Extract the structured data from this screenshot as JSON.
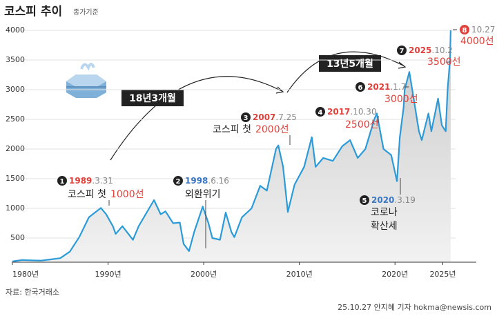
{
  "chart_data": {
    "type": "line",
    "title": "코스피 추이",
    "subtitle": "종가기준",
    "source": "자료: 한국거래소",
    "credit": "25.10.27 안지혜 기자 hokma@newsis.com",
    "x": [
      1980,
      1981,
      1982,
      1983,
      1984,
      1985,
      1986,
      1987,
      1988,
      1989.25,
      1989.8,
      1990.5,
      1990.8,
      1991.5,
      1992.6,
      1993.2,
      1994.8,
      1995.5,
      1996,
      1996.8,
      1997.5,
      1997.9,
      1998.46,
      1999,
      1999.9,
      2000.5,
      2000.9,
      2001.7,
      2002.3,
      2002.9,
      2003.2,
      2004,
      2005,
      2005.9,
      2006.6,
      2007.56,
      2007.8,
      2008.3,
      2008.8,
      2009.5,
      2010.5,
      2011.3,
      2011.7,
      2012.5,
      2013.5,
      2014.5,
      2015.3,
      2016.1,
      2016.9,
      2017.83,
      2018.1,
      2018.8,
      2019.6,
      2020.21,
      2020.5,
      2020.9,
      2021.01,
      2021.5,
      2021.9,
      2022.5,
      2022.8,
      2023.5,
      2023.8,
      2024.5,
      2024.9,
      2025.3,
      2025.5,
      2025.75,
      2025.82
    ],
    "series": [
      {
        "name": "코스피",
        "color": "#2a9bd8",
        "values": [
          106,
          130,
          125,
          120,
          140,
          160,
          270,
          520,
          850,
          1007,
          900,
          700,
          570,
          700,
          470,
          700,
          1140,
          900,
          950,
          750,
          760,
          400,
          280,
          600,
          1030,
          750,
          500,
          470,
          930,
          600,
          515,
          850,
          1000,
          1380,
          1300,
          2004,
          2060,
          1700,
          940,
          1400,
          1700,
          2200,
          1700,
          1850,
          1800,
          2050,
          2150,
          1850,
          2000,
          2500,
          2600,
          2000,
          1900,
          1457,
          2200,
          2700,
          3000,
          3300,
          2900,
          2300,
          2150,
          2600,
          2300,
          2850,
          2400,
          2300,
          3000,
          3500,
          4000
        ]
      }
    ],
    "xlim": [
      1980,
      2028.5
    ],
    "ylim": [
      0,
      4000
    ],
    "xticks": [
      {
        "value": 1980,
        "label": "1980년"
      },
      {
        "value": 1990,
        "label": "1990년"
      },
      {
        "value": 2000,
        "label": "2000년"
      },
      {
        "value": 2010,
        "label": "2010년"
      },
      {
        "value": 2020,
        "label": "2020년"
      },
      {
        "value": 2025,
        "label": "2025년"
      }
    ],
    "yticks": [
      500,
      1000,
      1500,
      2000,
      2500,
      3000,
      3500,
      4000
    ],
    "periods": [
      "18년3개월",
      "13년5개월"
    ],
    "annotations": [
      {
        "marker": "1",
        "year": "1989",
        "date": ".3.31",
        "color": "#e0413b",
        "label": "코스피 첫",
        "level": "1000선"
      },
      {
        "marker": "2",
        "year": "1998",
        "date": ".6.16",
        "color": "#3a78c2",
        "label": "외환위기"
      },
      {
        "marker": "3",
        "year": "2007",
        "date": ".7.25",
        "color": "#e0413b",
        "label": "코스피 첫",
        "level": "2000선"
      },
      {
        "marker": "4",
        "year": "2017",
        "date": ".10.30",
        "color": "#e0413b",
        "level": "2500선"
      },
      {
        "marker": "5",
        "year": "2020",
        "date": ".3.19",
        "color": "#3a78c2",
        "label": "코로나",
        "label2": "확산세"
      },
      {
        "marker": "6",
        "year": "2021",
        "date": ".1.7",
        "color": "#e0413b",
        "level": "3000선"
      },
      {
        "marker": "7",
        "year": "2025",
        "date": ".10.2",
        "color": "#e0413b",
        "level": "3500선"
      },
      {
        "marker": "8",
        "date": "10.27",
        "color": "#e0413b",
        "level": "4000선"
      }
    ]
  }
}
